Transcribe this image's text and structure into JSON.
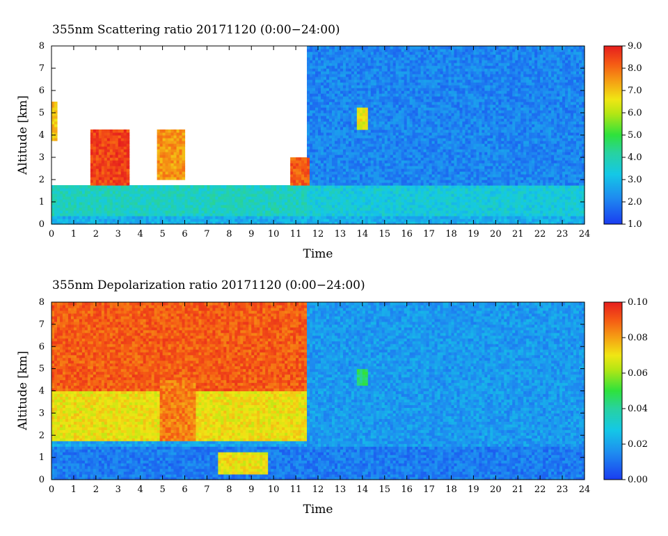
{
  "chart_data": [
    {
      "type": "heatmap",
      "title": "355nm Scattering ratio  20171120 (0:00−24:00)",
      "xlabel": "Time",
      "ylabel": "Altitude [km]",
      "xlim": [
        0,
        24
      ],
      "ylim": [
        0,
        8
      ],
      "x_ticks": [
        "0",
        "1",
        "2",
        "3",
        "4",
        "5",
        "6",
        "7",
        "8",
        "9",
        "10",
        "11",
        "12",
        "13",
        "14",
        "15",
        "16",
        "17",
        "18",
        "19",
        "20",
        "21",
        "22",
        "23",
        "24"
      ],
      "y_ticks": [
        "0",
        "1",
        "2",
        "3",
        "4",
        "5",
        "6",
        "7",
        "8"
      ],
      "colorbar": {
        "min": 1.0,
        "max": 9.0,
        "ticks": [
          "1.0",
          "2.0",
          "3.0",
          "4.0",
          "5.0",
          "6.0",
          "7.0",
          "8.0",
          "9.0"
        ]
      },
      "features": [
        {
          "t0": 0.0,
          "t1": 24.0,
          "z0": 0.0,
          "z1": 0.4,
          "value": 2.8
        },
        {
          "t0": 0.0,
          "t1": 11.5,
          "z0": 0.4,
          "z1": 1.7,
          "value": 3.8
        },
        {
          "t0": 11.5,
          "t1": 24.0,
          "z0": 0.4,
          "z1": 1.7,
          "value": 3.4
        },
        {
          "t0": 11.5,
          "t1": 24.0,
          "z0": 1.7,
          "z1": 8.0,
          "value": 2.1
        },
        {
          "t0": 1.7,
          "t1": 3.5,
          "z0": 1.8,
          "z1": 4.2,
          "value": 8.5
        },
        {
          "t0": 4.8,
          "t1": 6.0,
          "z0": 2.0,
          "z1": 4.3,
          "value": 7.5
        },
        {
          "t0": 0.0,
          "t1": 0.3,
          "z0": 3.8,
          "z1": 5.5,
          "value": 7.0
        },
        {
          "t0": 10.8,
          "t1": 11.6,
          "z0": 1.8,
          "z1": 3.0,
          "value": 8.2
        },
        {
          "t0": 13.8,
          "t1": 14.3,
          "z0": 4.2,
          "z1": 5.3,
          "value": 6.5
        }
      ]
    },
    {
      "type": "heatmap",
      "title": "355nm Depolarization ratio  20171120 (0:00−24:00)",
      "xlabel": "Time",
      "ylabel": "Altitude [km]",
      "xlim": [
        0,
        24
      ],
      "ylim": [
        0,
        8
      ],
      "x_ticks": [
        "0",
        "1",
        "2",
        "3",
        "4",
        "5",
        "6",
        "7",
        "8",
        "9",
        "10",
        "11",
        "12",
        "13",
        "14",
        "15",
        "16",
        "17",
        "18",
        "19",
        "20",
        "21",
        "22",
        "23",
        "24"
      ],
      "y_ticks": [
        "0",
        "1",
        "2",
        "3",
        "4",
        "5",
        "6",
        "7",
        "8"
      ],
      "colorbar": {
        "min": 0.0,
        "max": 0.1,
        "ticks": [
          "0.00",
          "0.02",
          "0.04",
          "0.06",
          "0.08",
          "0.10"
        ]
      },
      "features": [
        {
          "t0": 0.0,
          "t1": 24.0,
          "z0": 0.0,
          "z1": 1.5,
          "value": 0.012
        },
        {
          "t0": 11.5,
          "t1": 24.0,
          "z0": 1.5,
          "z1": 8.0,
          "value": 0.018
        },
        {
          "t0": 0.0,
          "t1": 11.5,
          "z0": 4.0,
          "z1": 8.0,
          "value": 0.09
        },
        {
          "t0": 0.0,
          "t1": 11.5,
          "z0": 1.8,
          "z1": 4.0,
          "value": 0.07
        },
        {
          "t0": 4.9,
          "t1": 6.5,
          "z0": 1.8,
          "z1": 4.5,
          "value": 0.085
        },
        {
          "t0": 13.8,
          "t1": 14.3,
          "z0": 4.2,
          "z1": 5.0,
          "value": 0.045
        },
        {
          "t0": 7.5,
          "t1": 9.8,
          "z0": 0.2,
          "z1": 1.2,
          "value": 0.07
        }
      ]
    }
  ]
}
